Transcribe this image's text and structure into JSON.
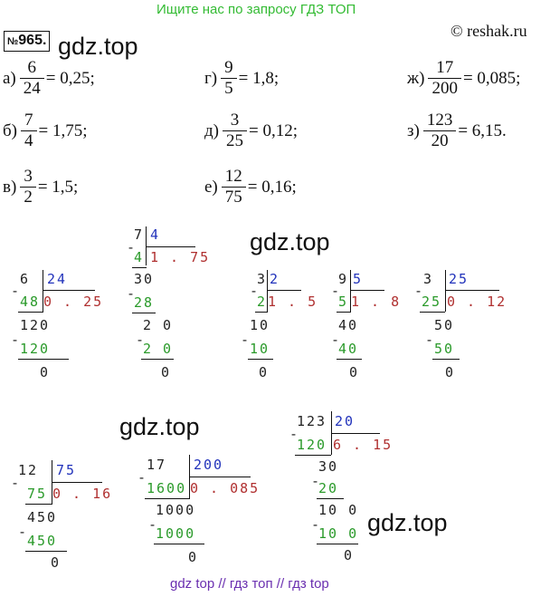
{
  "banner": "Ищите нас по запросу ГДЗ ТОП",
  "problem_number": "965.",
  "problem_prefix": "№",
  "site": "© reshak.ru",
  "watermark": "gdz.top",
  "footer": "gdz top  //  гдз топ  //  гдз top",
  "equations": {
    "a": {
      "label": "а)",
      "num": "6",
      "den": "24",
      "rhs": "= 0,25;"
    },
    "b": {
      "label": "б)",
      "num": "7",
      "den": "4",
      "rhs": "= 1,75;"
    },
    "v": {
      "label": "в)",
      "num": "3",
      "den": "2",
      "rhs": "= 1,5;"
    },
    "g": {
      "label": "г)",
      "num": "9",
      "den": "5",
      "rhs": "= 1,8;"
    },
    "d": {
      "label": "д)",
      "num": "3",
      "den": "25",
      "rhs": "= 0,12;"
    },
    "e": {
      "label": "е)",
      "num": "12",
      "den": "75",
      "rhs": "= 0,16;"
    },
    "zh": {
      "label": "ж)",
      "num": "17",
      "den": "200",
      "rhs": "= 0,085;"
    },
    "z": {
      "label": "з)",
      "num": "123",
      "den": "20",
      "rhs": "= 6,15."
    }
  },
  "divisions": {
    "d7": {
      "dividend": "7",
      "divisor": "4",
      "sub1": "4",
      "quot": "1 . 75",
      "r1": "30",
      "s2": "28",
      "r2": "2 0",
      "s3": "2 0",
      "r3": "0"
    },
    "d6": {
      "dividend": "6",
      "divisor": "24",
      "sub1": "48",
      "quot": "0 . 25",
      "r1": "120",
      "s2": "120",
      "r2": "0"
    },
    "d3": {
      "dividend": "3",
      "divisor": "2",
      "sub1": "2",
      "quot": "1 . 5",
      "r1": "10",
      "s2": "10",
      "r2": "0"
    },
    "d9": {
      "dividend": "9",
      "divisor": "5",
      "sub1": "5",
      "quot": "1 . 8",
      "r1": "40",
      "s2": "40",
      "r2": "0"
    },
    "d3b": {
      "dividend": "3",
      "divisor": "25",
      "sub1": "25",
      "quot": "0 . 12",
      "r1": "50",
      "s2": "50",
      "r2": "0"
    },
    "d12": {
      "dividend": "12",
      "divisor": "75",
      "sub1": "75",
      "quot": "0 . 16",
      "r1": "450",
      "s2": "450",
      "r2": "0"
    },
    "d17": {
      "dividend": "17",
      "divisor": "200",
      "sub1": "1600",
      "quot": "0 . 085",
      "r1": "1000",
      "s2": "1000",
      "r2": "0"
    },
    "d123": {
      "dividend": "123",
      "divisor": "20",
      "sub1": "120",
      "quot": "6 . 15",
      "r1": "30",
      "s2": "20",
      "r2": "10 0",
      "s3": "10 0",
      "r3": "0"
    }
  },
  "minus": "-"
}
